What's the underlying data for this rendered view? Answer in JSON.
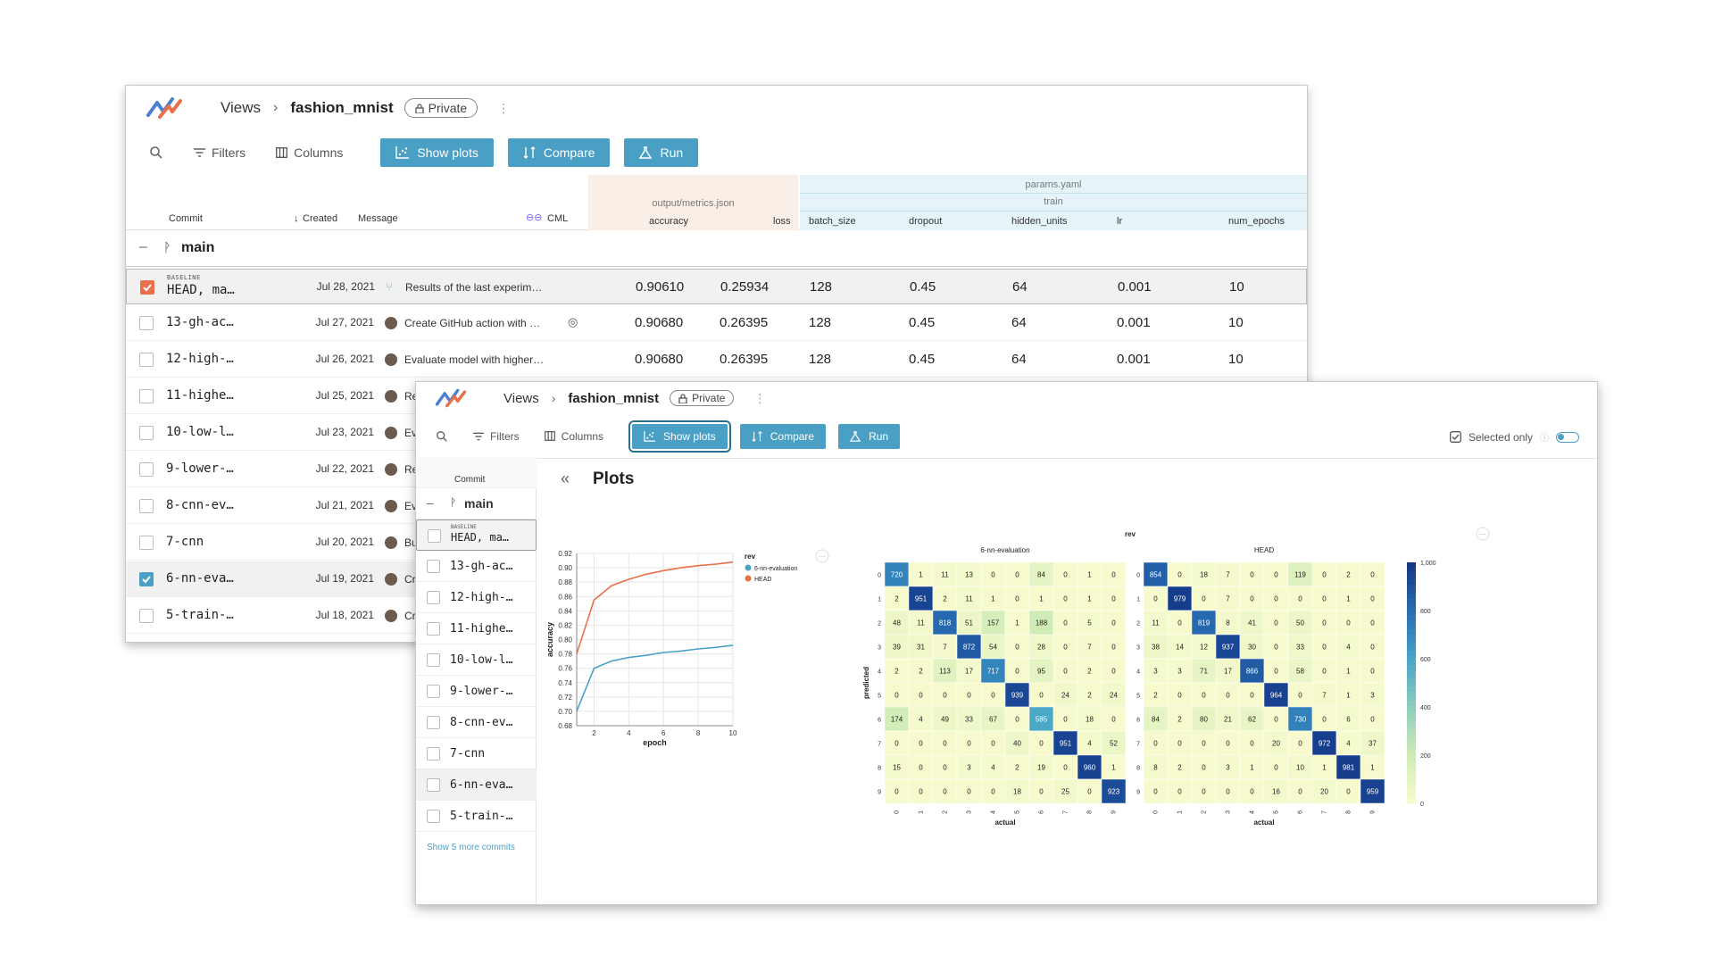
{
  "app": {
    "breadcrumb_root": "Views",
    "project": "fashion_mnist",
    "visibility": "Private"
  },
  "toolbar": {
    "filters": "Filters",
    "columns": "Columns",
    "show_plots": "Show plots",
    "compare": "Compare",
    "run": "Run",
    "selected_only": "Selected only"
  },
  "table": {
    "headers": {
      "commit": "Commit",
      "created": "Created",
      "message": "Message",
      "cml": "CML",
      "metrics_file": "output/metrics.json",
      "params_file": "params.yaml",
      "params_group": "train",
      "accuracy": "accuracy",
      "loss": "loss",
      "batch_size": "batch_size",
      "dropout": "dropout",
      "hidden_units": "hidden_units",
      "lr": "lr",
      "num_epochs": "num_epochs"
    },
    "branch": "main",
    "baseline_tag": "BASELINE",
    "rows": [
      {
        "commit": "HEAD, ma…",
        "created": "Jul 28, 2021",
        "message": "Results of the last experim…",
        "accuracy": "0.90610",
        "loss": "0.25934",
        "batch_size": "128",
        "dropout": "0.45",
        "hidden_units": "64",
        "lr": "0.001",
        "num_epochs": "10"
      },
      {
        "commit": "13-gh-ac…",
        "created": "Jul 27, 2021",
        "message": "Create GitHub action with …",
        "accuracy": "0.90680",
        "loss": "0.26395",
        "batch_size": "128",
        "dropout": "0.45",
        "hidden_units": "64",
        "lr": "0.001",
        "num_epochs": "10"
      },
      {
        "commit": "12-high-…",
        "created": "Jul 26, 2021",
        "message": "Evaluate model with higher…",
        "accuracy": "0.90680",
        "loss": "0.26395",
        "batch_size": "128",
        "dropout": "0.45",
        "hidden_units": "64",
        "lr": "0.001",
        "num_epochs": "10"
      },
      {
        "commit": "11-highe…",
        "created": "Jul 25, 2021",
        "message": "Reprodu"
      },
      {
        "commit": "10-low-l…",
        "created": "Jul 23, 2021",
        "message": "Evaluate"
      },
      {
        "commit": "9-lower-…",
        "created": "Jul 22, 2021",
        "message": "Reprodu"
      },
      {
        "commit": "8-cnn-ev…",
        "created": "Jul 21, 2021",
        "message": "Evaluate"
      },
      {
        "commit": "7-cnn",
        "created": "Jul 20, 2021",
        "message": "Build CN"
      },
      {
        "commit": "6-nn-eva…",
        "created": "Jul 19, 2021",
        "message": "Create e"
      },
      {
        "commit": "5-train-…",
        "created": "Jul 18, 2021",
        "message": "Create t"
      }
    ]
  },
  "sidebar": {
    "header": "Commit",
    "branch": "main",
    "show_more": "Show 5 more commits",
    "items": [
      "HEAD, ma…",
      "13-gh-ac…",
      "12-high-…",
      "11-highe…",
      "10-low-l…",
      "9-lower-…",
      "8-cnn-ev…",
      "7-cnn",
      "6-nn-eva…",
      "5-train-…"
    ]
  },
  "plots": {
    "title": "Plots",
    "rev_label": "rev",
    "cm_titles": [
      "6-nn-evaluation",
      "HEAD"
    ],
    "cm_xlabel": "actual",
    "cm_ylabel": "predicted",
    "colorbar_ticks": [
      "1,000",
      "800",
      "600",
      "400",
      "200",
      "0"
    ]
  },
  "colors": {
    "accent": "#4a9fc4",
    "head": "#e8704a",
    "eval": "#4aa3c6"
  },
  "chart_data": [
    {
      "type": "line",
      "xlabel": "epoch",
      "ylabel": "accuracy",
      "legend_title": "rev",
      "xlim": [
        1,
        10
      ],
      "ylim": [
        0.68,
        0.92
      ],
      "yticks": [
        0.68,
        0.7,
        0.72,
        0.74,
        0.76,
        0.78,
        0.8,
        0.82,
        0.84,
        0.86,
        0.88,
        0.9,
        0.92
      ],
      "xticks": [
        2,
        4,
        6,
        8,
        10
      ],
      "x": [
        1,
        2,
        3,
        4,
        5,
        6,
        7,
        8,
        9,
        10
      ],
      "series": [
        {
          "name": "6-nn-evaluation",
          "values": [
            0.7,
            0.76,
            0.77,
            0.775,
            0.778,
            0.782,
            0.784,
            0.787,
            0.789,
            0.792
          ]
        },
        {
          "name": "HEAD",
          "values": [
            0.78,
            0.855,
            0.875,
            0.884,
            0.891,
            0.896,
            0.9,
            0.903,
            0.905,
            0.908
          ]
        }
      ]
    },
    {
      "type": "heatmap",
      "title": "6-nn-evaluation",
      "xlabel": "actual",
      "ylabel": "predicted",
      "labels": [
        "0",
        "1",
        "2",
        "3",
        "4",
        "5",
        "6",
        "7",
        "8",
        "9"
      ],
      "matrix": [
        [
          720,
          1,
          11,
          13,
          0,
          0,
          84,
          0,
          1,
          0
        ],
        [
          2,
          951,
          2,
          11,
          1,
          0,
          1,
          0,
          1,
          0
        ],
        [
          48,
          11,
          818,
          51,
          157,
          1,
          188,
          0,
          5,
          0
        ],
        [
          39,
          31,
          7,
          872,
          54,
          0,
          28,
          0,
          7,
          0
        ],
        [
          2,
          2,
          113,
          17,
          717,
          0,
          95,
          0,
          2,
          0
        ],
        [
          0,
          0,
          0,
          0,
          0,
          939,
          0,
          24,
          2,
          24
        ],
        [
          174,
          4,
          49,
          33,
          67,
          0,
          585,
          0,
          18,
          0
        ],
        [
          0,
          0,
          0,
          0,
          0,
          40,
          0,
          951,
          4,
          52
        ],
        [
          15,
          0,
          0,
          3,
          4,
          2,
          19,
          0,
          960,
          1
        ],
        [
          0,
          0,
          0,
          0,
          0,
          18,
          0,
          25,
          0,
          923
        ]
      ]
    },
    {
      "type": "heatmap",
      "title": "HEAD",
      "xlabel": "actual",
      "ylabel": "predicted",
      "labels": [
        "0",
        "1",
        "2",
        "3",
        "4",
        "5",
        "6",
        "7",
        "8",
        "9"
      ],
      "matrix": [
        [
          854,
          0,
          18,
          7,
          0,
          0,
          119,
          0,
          2,
          0
        ],
        [
          0,
          979,
          0,
          7,
          0,
          0,
          0,
          0,
          1,
          0
        ],
        [
          11,
          0,
          819,
          8,
          41,
          0,
          50,
          0,
          0,
          0
        ],
        [
          38,
          14,
          12,
          937,
          30,
          0,
          33,
          0,
          4,
          0
        ],
        [
          3,
          3,
          71,
          17,
          866,
          0,
          58,
          0,
          1,
          0
        ],
        [
          2,
          0,
          0,
          0,
          0,
          964,
          0,
          7,
          1,
          3
        ],
        [
          84,
          2,
          80,
          21,
          62,
          0,
          730,
          0,
          6,
          0
        ],
        [
          0,
          0,
          0,
          0,
          0,
          20,
          0,
          972,
          4,
          37
        ],
        [
          8,
          2,
          0,
          3,
          1,
          0,
          10,
          1,
          981,
          1
        ],
        [
          0,
          0,
          0,
          0,
          0,
          16,
          0,
          20,
          0,
          959
        ]
      ]
    }
  ]
}
